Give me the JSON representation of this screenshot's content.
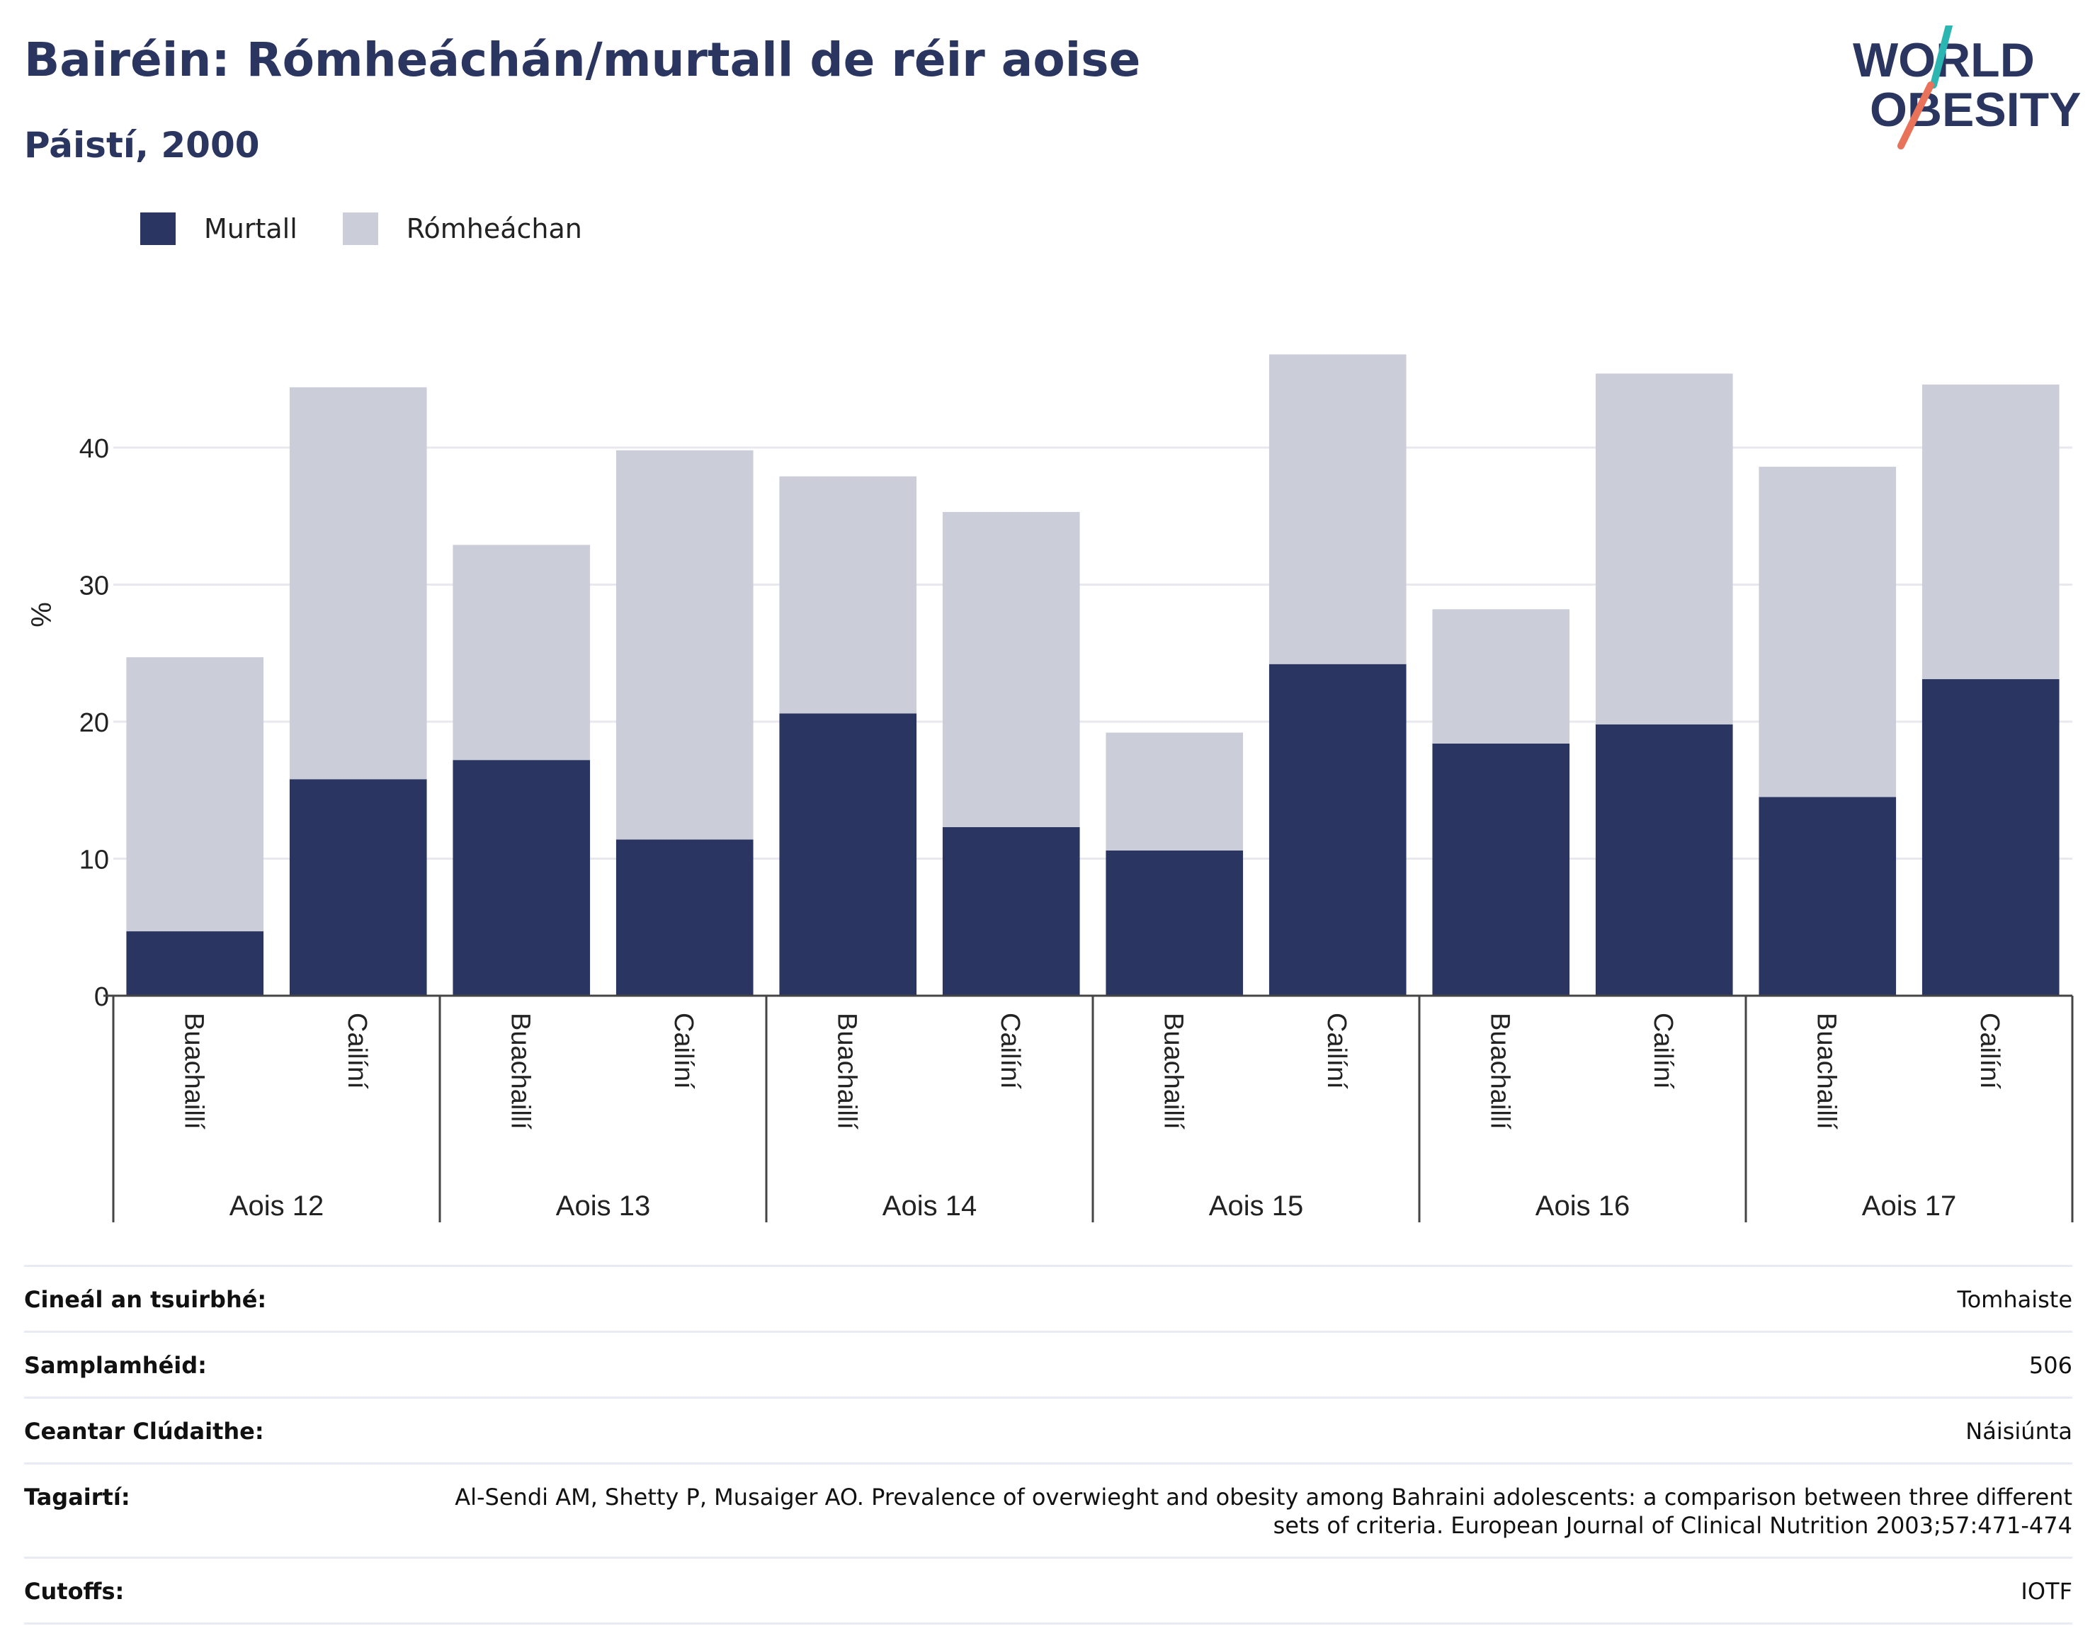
{
  "title": "Bairéin: Rómheáchán/murtall de réir aoise",
  "subtitle": "Páistí, 2000",
  "logo": {
    "line1": "WORLD",
    "line2": "OBESITY"
  },
  "legend": [
    {
      "label": "Murtall",
      "color": "#2a3562"
    },
    {
      "label": "Rómheáchan",
      "color": "#cbcdd9"
    }
  ],
  "chart_data": {
    "type": "bar",
    "stacked": true,
    "ylabel": "%",
    "ylim": [
      0,
      48
    ],
    "yticks": [
      0,
      10,
      20,
      30,
      40
    ],
    "grid": true,
    "legend_position": "top-left",
    "groups": [
      {
        "label": "Aois 12",
        "categories": [
          "Buachaillí",
          "Cailíní"
        ]
      },
      {
        "label": "Aois 13",
        "categories": [
          "Buachaillí",
          "Cailíní"
        ]
      },
      {
        "label": "Aois 14",
        "categories": [
          "Buachaillí",
          "Cailíní"
        ]
      },
      {
        "label": "Aois 15",
        "categories": [
          "Buachaillí",
          "Cailíní"
        ]
      },
      {
        "label": "Aois 16",
        "categories": [
          "Buachaillí",
          "Cailíní"
        ]
      },
      {
        "label": "Aois 17",
        "categories": [
          "Buachaillí",
          "Cailíní"
        ]
      }
    ],
    "series": [
      {
        "name": "Murtall",
        "color": "#2a3562",
        "values": [
          4.7,
          15.8,
          17.2,
          11.4,
          20.6,
          12.3,
          10.6,
          24.2,
          18.4,
          19.8,
          14.5,
          23.1
        ]
      },
      {
        "name": "Rómheáchan",
        "color": "#cbcdd9",
        "values": [
          20.0,
          28.6,
          15.7,
          28.4,
          17.3,
          23.0,
          8.6,
          22.6,
          9.8,
          25.6,
          24.1,
          21.5
        ]
      }
    ]
  },
  "info": [
    {
      "label": "Cineál an tsuirbhé:",
      "value": "Tomhaiste"
    },
    {
      "label": "Samplamhéid:",
      "value": "506"
    },
    {
      "label": "Ceantar Clúdaithe:",
      "value": "Náisiúnta"
    },
    {
      "label": "Tagairtí:",
      "value": "Al-Sendi AM, Shetty P, Musaiger AO. Prevalence of overwieght and obesity among Bahraini adolescents: a comparison between three different sets of criteria. European Journal of Clinical Nutrition 2003;57:471-474"
    },
    {
      "label": "Cutoffs:",
      "value": "IOTF"
    }
  ]
}
